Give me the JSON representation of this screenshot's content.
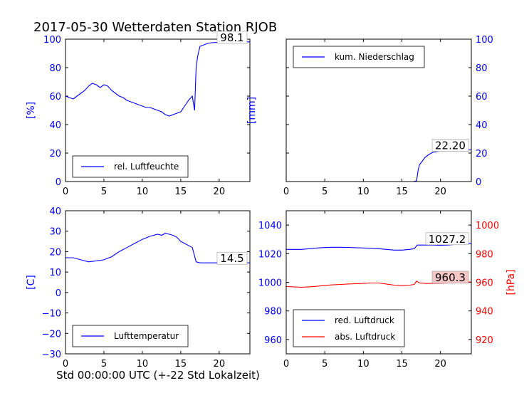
{
  "title": "2017-05-30 Wetterdaten Station RJOB",
  "xlabel": "Std 00:00:00 UTC (+-22 Std Lokalzeit)",
  "colors": {
    "left_axis": "#0000ff",
    "right_axis": "#ff0000",
    "series_blue": "#0000ff",
    "series_red": "#ff0000",
    "frame": "#000000"
  },
  "chart_data": [
    {
      "type": "line",
      "panel": "top-left",
      "ylabel": "[%]",
      "xlim": [
        0,
        24
      ],
      "ylim": [
        0,
        100
      ],
      "xticks": [
        0,
        5,
        10,
        15,
        20
      ],
      "yticks": [
        0,
        20,
        40,
        60,
        80,
        100
      ],
      "legend": {
        "placement": "bottom-center",
        "entries": [
          "rel. Luftfeuchte"
        ]
      },
      "annotation": "98.1",
      "series": [
        {
          "name": "rel. Luftfeuchte",
          "color": "#0000ff",
          "x": [
            0,
            0.5,
            1,
            1.5,
            2,
            2.5,
            3,
            3.5,
            4,
            4.5,
            5,
            5.5,
            6,
            6.5,
            7,
            7.5,
            8,
            8.5,
            9,
            9.5,
            10,
            10.5,
            11,
            11.5,
            12,
            12.5,
            13,
            13.5,
            14,
            14.5,
            15,
            15.5,
            16,
            16.5,
            16.8,
            17.0,
            17.2,
            17.5,
            18,
            18.5,
            19,
            20,
            21,
            22,
            23,
            24
          ],
          "y": [
            60,
            59,
            58,
            60,
            62,
            64,
            67,
            69,
            68,
            66,
            68,
            67,
            64,
            62,
            60,
            59,
            57,
            56,
            55,
            54,
            53,
            52,
            52,
            51,
            50,
            49,
            47,
            46,
            47,
            48,
            49,
            53,
            57,
            60,
            50,
            80,
            88,
            95,
            96,
            97,
            97.5,
            97.8,
            98,
            98.1,
            98.1,
            98.1
          ]
        }
      ]
    },
    {
      "type": "line",
      "panel": "top-right",
      "ylabel": "[mm]",
      "xlim": [
        0,
        24
      ],
      "ylim": [
        0,
        100
      ],
      "xticks": [
        0,
        5,
        10,
        15,
        20
      ],
      "yticks": [
        0,
        20,
        40,
        60,
        80,
        100
      ],
      "legend": {
        "placement": "top-center",
        "entries": [
          "kum. Niederschlag"
        ]
      },
      "annotation": "22.20",
      "series": [
        {
          "name": "kum. Niederschlag",
          "color": "#0000ff",
          "x": [
            0,
            5,
            10,
            15,
            16.5,
            16.9,
            17.1,
            17.3,
            17.6,
            18,
            18.5,
            19,
            20,
            21,
            22,
            23,
            24
          ],
          "y": [
            0,
            0,
            0,
            0,
            0,
            0.5,
            8,
            12,
            14,
            17,
            19,
            20.5,
            21.5,
            22,
            22.2,
            22.2,
            22.2
          ]
        }
      ]
    },
    {
      "type": "line",
      "panel": "bottom-left",
      "ylabel": "[C]",
      "xlim": [
        0,
        24
      ],
      "ylim": [
        -30,
        40
      ],
      "xticks": [
        0,
        5,
        10,
        15,
        20
      ],
      "yticks": [
        -30,
        -20,
        -10,
        0,
        10,
        20,
        30,
        40
      ],
      "legend": {
        "placement": "bottom-center",
        "entries": [
          "Lufttemperatur"
        ]
      },
      "annotation": "14.5",
      "series": [
        {
          "name": "Lufttemperatur",
          "color": "#0000ff",
          "x": [
            0,
            1,
            2,
            3,
            4,
            5,
            6,
            7,
            8,
            9,
            10,
            11,
            12,
            12.5,
            13,
            13.5,
            14,
            14.5,
            15,
            15.5,
            16,
            16.5,
            17,
            17.5,
            18,
            19,
            20,
            21,
            22,
            23,
            24
          ],
          "y": [
            17,
            17,
            16,
            15,
            15.5,
            16,
            17.5,
            20,
            22,
            24,
            26,
            27.5,
            28.5,
            28,
            29,
            28.5,
            28,
            27,
            25,
            24,
            23,
            22,
            15,
            14.5,
            14.5,
            14.5,
            14.5,
            14.5,
            14.5,
            14.5,
            14.5
          ]
        }
      ]
    },
    {
      "type": "line",
      "panel": "bottom-right",
      "ylabel_right": "[hPa]",
      "xlim": [
        0,
        24
      ],
      "ylim": [
        950,
        1050
      ],
      "ylim_right": [
        910,
        1010
      ],
      "xticks": [
        0,
        5,
        10,
        15,
        20
      ],
      "yticks": [
        960,
        980,
        1000,
        1020,
        1040
      ],
      "yticks_right": [
        920,
        940,
        960,
        980,
        1000
      ],
      "legend": {
        "placement": "bottom-left",
        "entries": [
          "red. Luftdruck",
          "abs. Luftdruck"
        ]
      },
      "annotations": [
        "1027.2",
        "960.3"
      ],
      "series": [
        {
          "name": "red. Luftdruck",
          "color": "#0000ff",
          "axis": "left",
          "x": [
            0,
            1,
            2,
            3,
            4,
            5,
            6,
            7,
            8,
            9,
            10,
            11,
            12,
            13,
            14,
            15,
            16,
            16.6,
            17,
            18,
            19,
            20,
            21,
            22,
            23,
            24
          ],
          "y": [
            1023,
            1023,
            1023,
            1023.5,
            1024,
            1024.3,
            1024.5,
            1024.5,
            1024.4,
            1024.2,
            1024,
            1023.8,
            1023.5,
            1023,
            1022.5,
            1022.5,
            1023,
            1023.5,
            1026,
            1026,
            1026,
            1025.8,
            1026,
            1026.5,
            1027,
            1027.2
          ]
        },
        {
          "name": "abs. Luftdruck",
          "color": "#ff0000",
          "axis": "right",
          "x": [
            0,
            1,
            2,
            3,
            4,
            5,
            6,
            7,
            8,
            9,
            10,
            11,
            12,
            13,
            14,
            15,
            16,
            16.6,
            16.9,
            17.3,
            18,
            19,
            20,
            21,
            22,
            23,
            24
          ],
          "y": [
            957,
            956.8,
            956.5,
            956.8,
            957.2,
            957.8,
            958.2,
            958.5,
            958.8,
            959,
            959.2,
            959.5,
            959.5,
            958.8,
            958,
            957.8,
            958,
            958.5,
            960.8,
            959.5,
            959.2,
            959.2,
            959.3,
            959.5,
            959.8,
            960,
            960.3
          ]
        }
      ]
    }
  ]
}
